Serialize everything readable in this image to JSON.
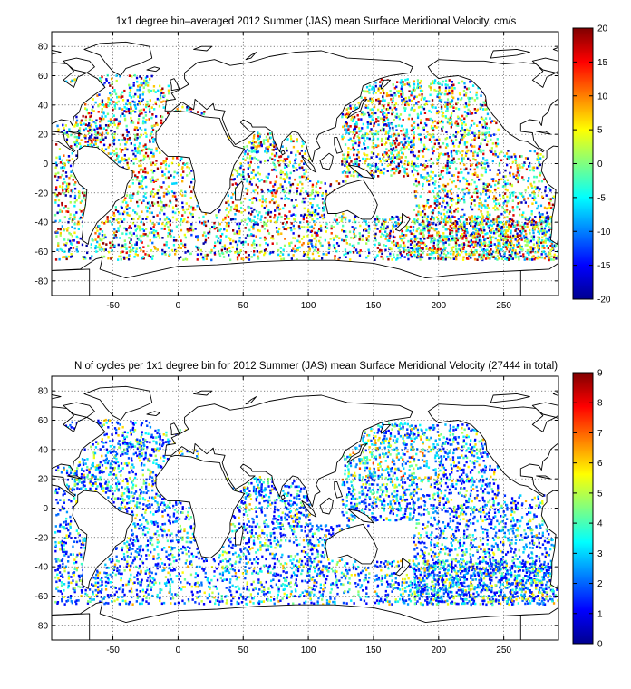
{
  "chart_data": [
    {
      "type": "heatmap",
      "title": "1x1 degree bin–averaged 2012 Summer (JAS) mean Surface Meridional Velocity, cm/s",
      "xlabel": "",
      "ylabel": "",
      "xlim": [
        -97,
        292
      ],
      "ylim": [
        -90,
        90
      ],
      "x_ticks": [
        "-50",
        "0",
        "50",
        "100",
        "150",
        "200",
        "250"
      ],
      "y_ticks": [
        "80",
        "60",
        "40",
        "20",
        "0",
        "-20",
        "-40",
        "-60",
        "-80"
      ],
      "grid": true,
      "colormap": "jet",
      "colorbar": {
        "min": -20,
        "max": 20,
        "ticks": [
          "20",
          "15",
          "10",
          "5",
          "0",
          "-5",
          "-10",
          "-15",
          "-20"
        ]
      }
    },
    {
      "type": "heatmap",
      "title": "N of cycles per 1x1 degree bin for 2012 Summer (JAS) mean Surface Meridional Velocity (27444 in total)",
      "xlabel": "",
      "ylabel": "",
      "xlim": [
        -97,
        292
      ],
      "ylim": [
        -90,
        90
      ],
      "x_ticks": [
        "-50",
        "0",
        "50",
        "100",
        "150",
        "200",
        "250"
      ],
      "y_ticks": [
        "80",
        "60",
        "40",
        "20",
        "0",
        "-20",
        "-40",
        "-60",
        "-80"
      ],
      "grid": true,
      "colormap": "jet",
      "colorbar": {
        "min": 0,
        "max": 9,
        "ticks": [
          "9",
          "8",
          "7",
          "6",
          "5",
          "4",
          "3",
          "2",
          "1",
          "0"
        ]
      }
    }
  ]
}
